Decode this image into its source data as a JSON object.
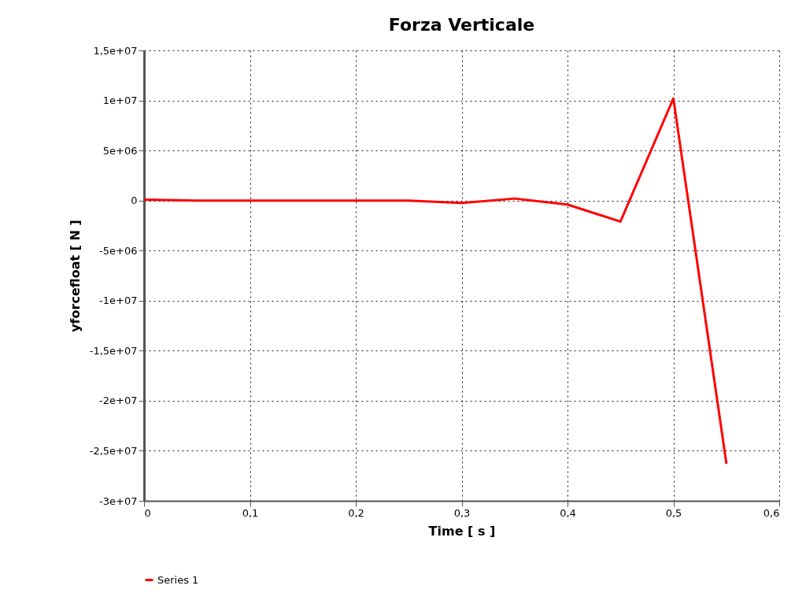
{
  "chart_data": {
    "type": "line",
    "title": "Forza Verticale",
    "xlabel": "Time [ s ]",
    "ylabel": "yforcefloat  [ N ]",
    "x": [
      0,
      0.05,
      0.1,
      0.15,
      0.2,
      0.25,
      0.3,
      0.35,
      0.4,
      0.45,
      0.5,
      0.55
    ],
    "series": [
      {
        "name": "Series 1",
        "color": "#ff0000",
        "values": [
          100000,
          0,
          0,
          0,
          0,
          0,
          -250000,
          200000,
          -400000,
          -2100000,
          10200000,
          -26200000
        ]
      }
    ],
    "xlim": [
      0,
      0.6
    ],
    "xticks": [
      0,
      {
        "value": 0.1,
        "label": "0,1"
      },
      {
        "value": 0.2,
        "label": "0,2"
      },
      {
        "value": 0.3,
        "label": "0,3"
      },
      {
        "value": 0.4,
        "label": "0,4"
      },
      {
        "value": 0.5,
        "label": "0,5"
      },
      {
        "value": 0.6,
        "label": "0,6"
      }
    ],
    "ylim": [
      -30000000,
      15000000
    ],
    "yticks": [
      {
        "value": -30000000,
        "label": "-3e+07"
      },
      {
        "value": -25000000,
        "label": "-2,5e+07"
      },
      {
        "value": -20000000,
        "label": "-2e+07"
      },
      {
        "value": -15000000,
        "label": "-1,5e+07"
      },
      {
        "value": -10000000,
        "label": "-1e+07"
      },
      {
        "value": -5000000,
        "label": "-5e+06"
      },
      0,
      {
        "value": 5000000,
        "label": "5e+06"
      },
      {
        "value": 10000000,
        "label": "1e+07"
      },
      {
        "value": 15000000,
        "label": "1,5e+07"
      }
    ],
    "grid": true,
    "legend": "bottom",
    "line_style": "solid",
    "marker": "none"
  }
}
